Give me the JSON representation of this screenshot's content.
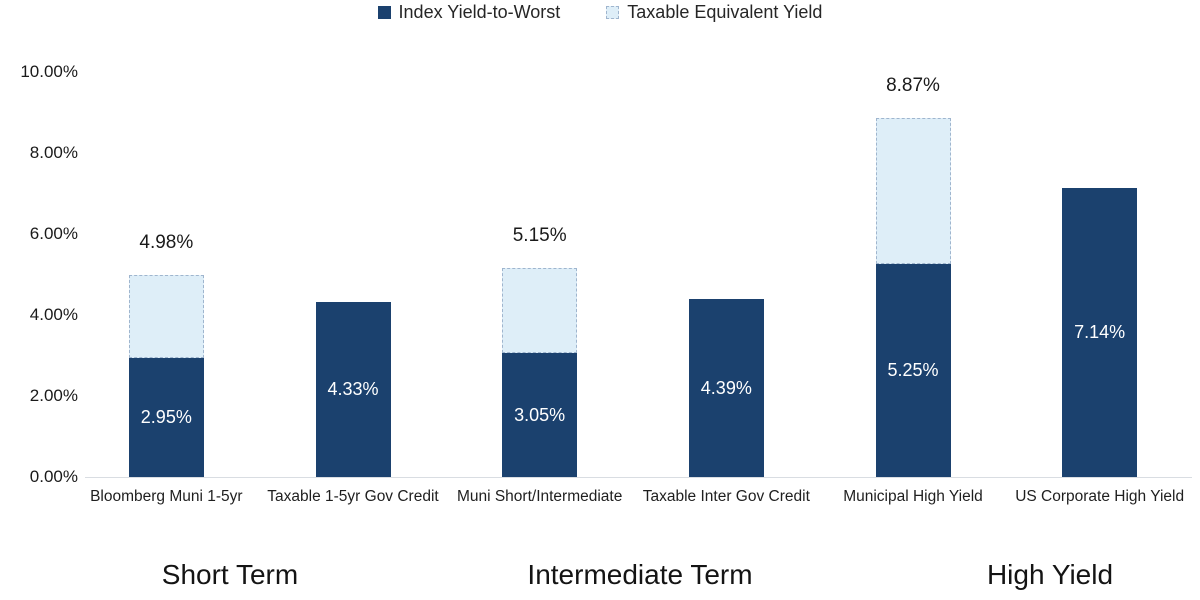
{
  "chart_data": {
    "type": "bar",
    "stacked": true,
    "title": "",
    "xlabel": "",
    "ylabel": "",
    "categories": [
      "Bloomberg Muni 1-5yr",
      "Taxable 1-5yr Gov Credit",
      "Muni Short/Intermediate",
      "Taxable Inter Gov Credit",
      "Municipal High Yield",
      "US Corporate High Yield"
    ],
    "series": [
      {
        "name": "Index Yield-to-Worst",
        "color": "#1B416E",
        "values": [
          2.95,
          4.33,
          3.05,
          4.39,
          5.25,
          7.14
        ]
      },
      {
        "name": "Taxable Equivalent Yield",
        "color": "#DEEEF8",
        "values": [
          2.03,
          0,
          2.1,
          0,
          3.62,
          0
        ]
      }
    ],
    "bar_value_labels": [
      "2.95%",
      "4.33%",
      "3.05%",
      "4.39%",
      "5.25%",
      "7.14%"
    ],
    "totals": [
      4.98,
      4.33,
      5.15,
      4.39,
      8.87,
      7.14
    ],
    "total_labels": [
      "4.98%",
      "",
      "5.15%",
      "",
      "8.87%",
      ""
    ],
    "group_labels": [
      "Short Term",
      "Intermediate Term",
      "High Yield"
    ],
    "ylim": [
      0,
      10
    ],
    "ytick_values": [
      0,
      2,
      4,
      6,
      8,
      10
    ],
    "ytick_labels": [
      "0.00%",
      "2.00%",
      "4.00%",
      "6.00%",
      "8.00%",
      "10.00%"
    ],
    "legend_position": "top",
    "grid": false,
    "colors": {
      "dark_bar": "#1B416E",
      "light_bar": "#DEEEF8",
      "light_bar_border": "#9FB5CE",
      "axis_line": "#D9DDE2",
      "bar_label_text": "#FFFFFF",
      "text": "#1F1F1F"
    }
  }
}
